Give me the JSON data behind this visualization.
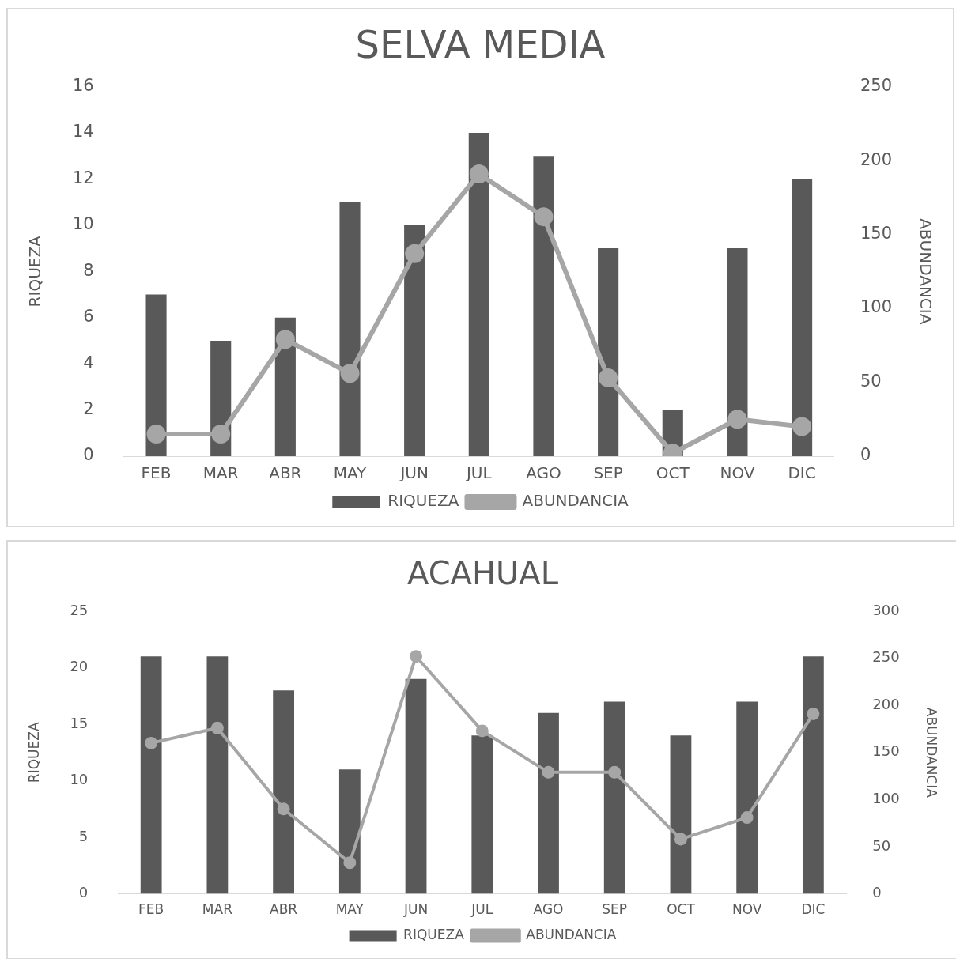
{
  "chart_data": [
    {
      "type": "bar",
      "title": "SELVA MEDIA",
      "ylabel": "RIQUEZA",
      "y2label": "ABUNDANCIA",
      "categories": [
        "FEB",
        "MAR",
        "ABR",
        "MAY",
        "JUN",
        "JUL",
        "AGO",
        "SEP",
        "OCT",
        "NOV",
        "DIC"
      ],
      "series": [
        {
          "name": "RIQUEZA",
          "color": "#595959",
          "values": [
            7,
            5,
            6,
            11,
            10,
            14,
            13,
            9,
            2,
            9,
            12
          ]
        },
        {
          "name": "ABUNDANCIA",
          "type": "line",
          "axis": "y2",
          "color": "#a6a6a6",
          "marker": "circle",
          "values": [
            15,
            15,
            79,
            56,
            137,
            191,
            162,
            53,
            2,
            25,
            20
          ]
        }
      ],
      "ylim": [
        0,
        16
      ],
      "yticks": [
        0,
        2,
        4,
        6,
        8,
        10,
        12,
        14,
        16
      ],
      "y2lim": [
        0,
        250
      ],
      "y2ticks": [
        0,
        50,
        100,
        150,
        200,
        250
      ],
      "grid": false,
      "legend": "bottom"
    },
    {
      "type": "bar",
      "title": "ACAHUAL",
      "ylabel": "RIQUEZA",
      "y2label": "ABUNDANCIA",
      "categories": [
        "FEB",
        "MAR",
        "ABR",
        "MAY",
        "JUN",
        "JUL",
        "AGO",
        "SEP",
        "OCT",
        "NOV",
        "DIC"
      ],
      "series": [
        {
          "name": "RIQUEZA",
          "color": "#595959",
          "values": [
            21,
            21,
            18,
            11,
            19,
            14,
            16,
            17,
            14,
            17,
            21
          ]
        },
        {
          "name": "ABUNDANCIA",
          "type": "line",
          "axis": "y2",
          "color": "#a6a6a6",
          "marker": "circle",
          "values": [
            160,
            176,
            90,
            33,
            252,
            173,
            129,
            129,
            58,
            81,
            191
          ]
        }
      ],
      "ylim": [
        0,
        25
      ],
      "yticks": [
        0,
        5,
        10,
        15,
        20,
        25
      ],
      "y2lim": [
        0,
        300
      ],
      "y2ticks": [
        0,
        50,
        100,
        150,
        200,
        250,
        300
      ],
      "grid": false,
      "legend": "bottom"
    }
  ]
}
